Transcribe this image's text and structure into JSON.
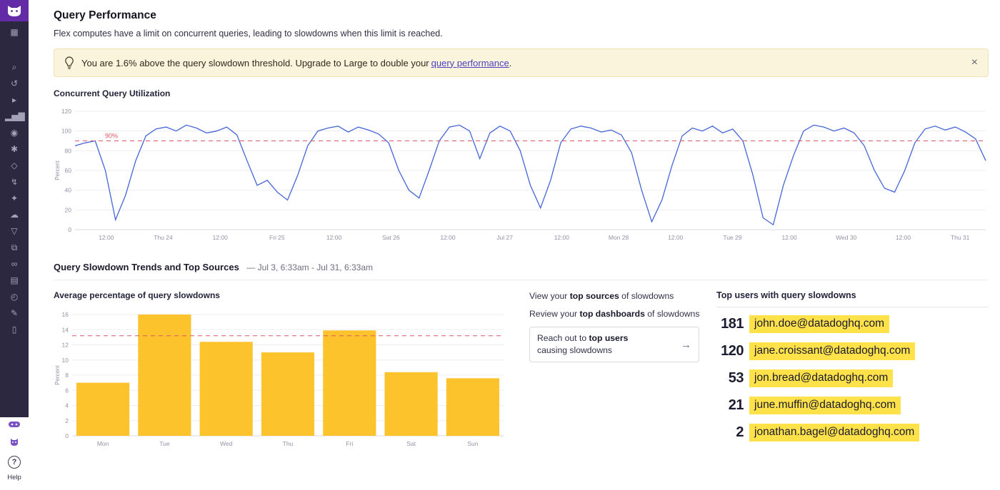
{
  "page": {
    "title": "Query Performance",
    "subtitle": "Flex computes have a limit on concurrent queries, leading to slowdowns when this limit is reached."
  },
  "banner": {
    "text": "You are 1.6% above the query slowdown threshold. Upgrade to Large to double your",
    "link_label": "query performance",
    "suffix": ".",
    "close_label": "×"
  },
  "sections": {
    "concurrent": {
      "title": "Concurrent Query Utilization"
    },
    "trends": {
      "title": "Query Slowdown Trends and Top Sources",
      "range": "— Jul 3, 6:33am - Jul 31, 6:33am",
      "avg_title": "Average percentage of query slowdowns"
    }
  },
  "actions": {
    "view_sources": {
      "prefix": "View your",
      "strong": "top sources",
      "suffix": "of slowdowns"
    },
    "review_dashboards": {
      "prefix": "Review your",
      "strong": "top dashboards",
      "suffix": "of slowdowns"
    },
    "reach_users": {
      "prefix": "Reach out to",
      "strong": "top users",
      "suffix": "causing slowdowns"
    },
    "arrow": "→"
  },
  "top_users": {
    "title": "Top users with query slowdowns",
    "rows": [
      {
        "count": "181",
        "email": "john.doe@datadoghq.com"
      },
      {
        "count": "120",
        "email": "jane.croissant@datadoghq.com"
      },
      {
        "count": "53",
        "email": "jon.bread@datadoghq.com"
      },
      {
        "count": "21",
        "email": "june.muffin@datadoghq.com"
      },
      {
        "count": "2",
        "email": "jonathan.bagel@datadoghq.com"
      }
    ]
  },
  "help": {
    "icon": "?",
    "label": "Help"
  },
  "sidebar": {
    "icons": [
      {
        "name": "apps-grid-icon",
        "glyph": "▦"
      },
      {
        "name": "search-icon",
        "glyph": "⌕"
      },
      {
        "name": "history-icon",
        "glyph": "↺"
      },
      {
        "name": "ci-pipeline-icon",
        "glyph": "▸"
      },
      {
        "name": "metrics-icon",
        "glyph": "▂▅▇"
      },
      {
        "name": "watchdog-icon",
        "glyph": "◉"
      },
      {
        "name": "service-catalog-icon",
        "glyph": "✱"
      },
      {
        "name": "integrations-icon",
        "glyph": "◇"
      },
      {
        "name": "events-icon",
        "glyph": "↯"
      },
      {
        "name": "apm-icon",
        "glyph": "✦"
      },
      {
        "name": "infrastructure-icon",
        "glyph": "☁"
      },
      {
        "name": "logs-icon",
        "glyph": "▽"
      },
      {
        "name": "workflows-icon",
        "glyph": "⧉"
      },
      {
        "name": "synthetics-icon",
        "glyph": "∞"
      },
      {
        "name": "databases-icon",
        "glyph": "▤"
      },
      {
        "name": "monitors-icon",
        "glyph": "◴"
      },
      {
        "name": "notebooks-icon",
        "glyph": "✎"
      },
      {
        "name": "rum-icon",
        "glyph": "▯"
      }
    ]
  },
  "colors": {
    "accent_purple": "#632ca6",
    "highlight_yellow": "#ffe24a",
    "banner_bg": "#fbf4dd",
    "threshold_red": "#e05667",
    "line_blue": "#4565d8",
    "bar_yellow": "#fcc32d"
  },
  "chart_data": [
    {
      "type": "line",
      "title": "Concurrent Query Utilization",
      "ylabel": "Percent",
      "ylim": [
        0,
        120
      ],
      "yticks": [
        0,
        20,
        40,
        60,
        80,
        100,
        120
      ],
      "x_ticks": [
        "12:00",
        "Thu 24",
        "12:00",
        "Fri 25",
        "12:00",
        "Sat 26",
        "12:00",
        "Jul 27",
        "12:00",
        "Mon 28",
        "12:00",
        "Tue 29",
        "12:00",
        "Wed 30",
        "12:00",
        "Thu 31"
      ],
      "threshold": {
        "value": 90,
        "label": "90%"
      },
      "line_color": "#4565d8",
      "threshold_color": "#e05667",
      "grid": true,
      "legend": "none",
      "series": [
        {
          "name": "percent",
          "values": [
            85,
            88,
            90,
            60,
            10,
            35,
            70,
            95,
            102,
            104,
            100,
            106,
            103,
            98,
            100,
            104,
            96,
            70,
            45,
            50,
            38,
            30,
            55,
            85,
            100,
            103,
            105,
            99,
            104,
            101,
            97,
            88,
            60,
            40,
            32,
            60,
            90,
            104,
            106,
            100,
            72,
            98,
            105,
            100,
            80,
            45,
            22,
            50,
            88,
            102,
            105,
            103,
            99,
            101,
            96,
            78,
            40,
            8,
            30,
            65,
            95,
            103,
            100,
            105,
            98,
            102,
            90,
            55,
            12,
            5,
            45,
            75,
            100,
            106,
            104,
            100,
            103,
            98,
            85,
            60,
            42,
            38,
            60,
            88,
            102,
            105,
            101,
            104,
            99,
            92,
            70
          ]
        }
      ]
    },
    {
      "type": "bar",
      "title": "Average percentage of query slowdowns",
      "ylabel": "Percent",
      "ylim": [
        0,
        16
      ],
      "yticks": [
        0,
        2,
        4,
        6,
        8,
        10,
        12,
        14,
        16
      ],
      "categories": [
        "Mon",
        "Tue",
        "Wed",
        "Thu",
        "Fri",
        "Sat",
        "Sun"
      ],
      "values": [
        7,
        16,
        12.4,
        11,
        13.9,
        8.4,
        7.6
      ],
      "threshold": {
        "value": 13.2,
        "label": ""
      },
      "bar_color": "#fcc32d",
      "threshold_color": "#e05667",
      "grid": true,
      "legend": "none"
    }
  ]
}
